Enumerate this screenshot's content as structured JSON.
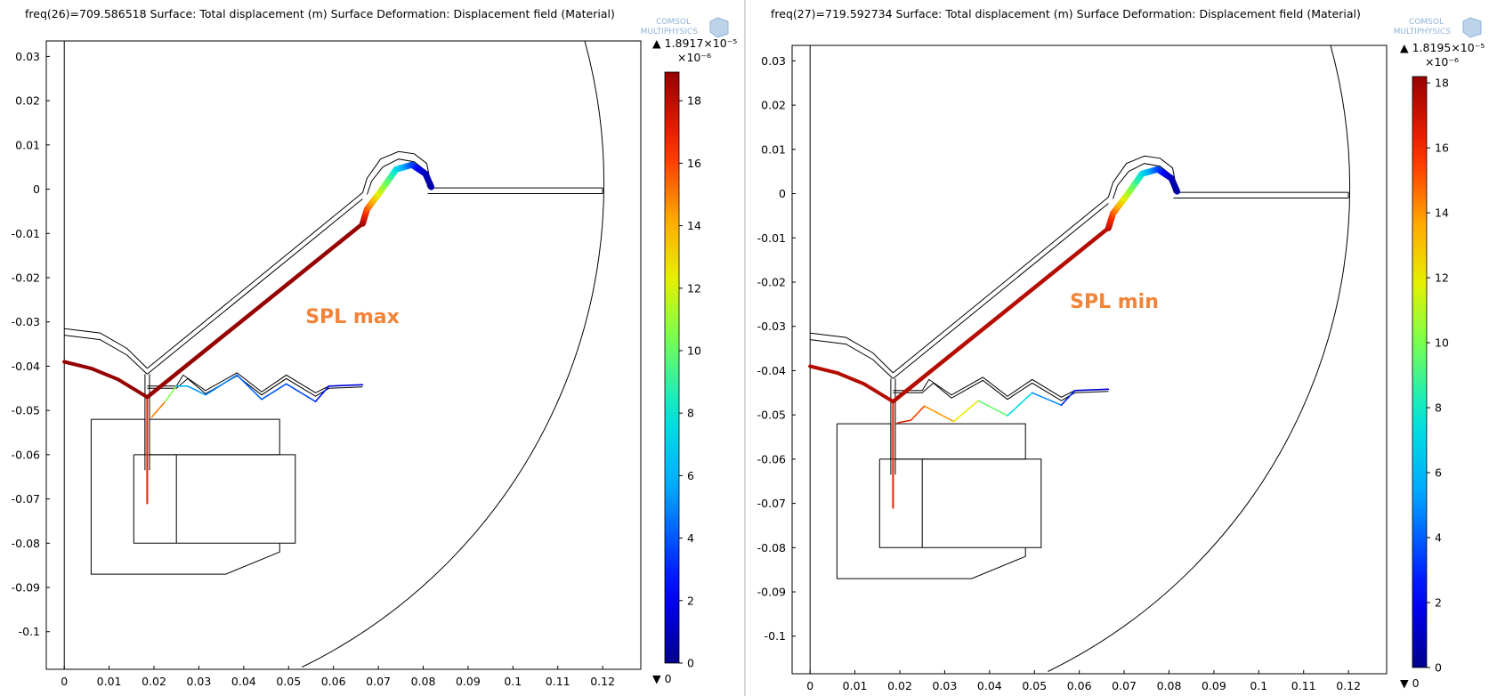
{
  "logo": {
    "line1": "COMSOL",
    "line2": "MULTIPHYSICS"
  },
  "chart_data": [
    {
      "type": "heatmap",
      "title": "freq(26)=709.586518  Surface: Total displacement (m)   Surface Deformation: Displacement field (Material)",
      "annotation": "SPL max",
      "x_ticks": [
        "0",
        "0.01",
        "0.02",
        "0.03",
        "0.04",
        "0.05",
        "0.06",
        "0.07",
        "0.08",
        "0.09",
        "0.1",
        "0.11",
        "0.12"
      ],
      "y_ticks": [
        "0.03",
        "0.02",
        "0.01",
        "0",
        "-0.01",
        "-0.02",
        "-0.03",
        "-0.04",
        "-0.05",
        "-0.06",
        "-0.07",
        "-0.08",
        "-0.09",
        "-0.1"
      ],
      "xlim": [
        -0.004,
        0.1285
      ],
      "ylim": [
        -0.1085,
        0.0335
      ],
      "colorbar": {
        "max_label": "▲ 1.8917×10⁻⁵",
        "min_label": "▼ 0",
        "multiplier": "×10⁻⁶",
        "ticks": [
          "0",
          "2",
          "4",
          "6",
          "8",
          "10",
          "12",
          "14",
          "16",
          "18"
        ],
        "min": 0,
        "max": 18.917,
        "colormap": "rainbow"
      },
      "cone": [
        [
          0.0185,
          -0.047
        ],
        [
          0.0665,
          -0.0078
        ]
      ],
      "dome": [
        [
          0.0665,
          -0.0078
        ],
        [
          0.0675,
          -0.0045
        ],
        [
          0.0705,
          -0.0005
        ],
        [
          0.074,
          0.0045
        ],
        [
          0.0775,
          0.0055
        ],
        [
          0.0805,
          0.0035
        ],
        [
          0.0818,
          0.0005
        ]
      ],
      "dome_values": [
        18.917,
        16,
        12,
        8,
        4,
        1,
        0.5
      ],
      "surround": [
        [
          0,
          -0.039
        ],
        [
          0.006,
          -0.0405
        ],
        [
          0.012,
          -0.043
        ],
        [
          0.0185,
          -0.047
        ]
      ],
      "suspension": [
        [
          0.0195,
          -0.0515
        ],
        [
          0.0225,
          -0.048
        ],
        [
          0.025,
          -0.0445
        ],
        [
          0.0275,
          -0.0445
        ],
        [
          0.0315,
          -0.0465
        ],
        [
          0.0385,
          -0.042
        ],
        [
          0.044,
          -0.0475
        ],
        [
          0.0495,
          -0.044
        ],
        [
          0.056,
          -0.048
        ],
        [
          0.059,
          -0.0445
        ],
        [
          0.0665,
          -0.0442
        ]
      ],
      "suspension_values": [
        16,
        14,
        7,
        5.5,
        5,
        4.5,
        4,
        4,
        3.5,
        2,
        1
      ],
      "voice_coil": [
        [
          0.0185,
          -0.0475
        ],
        [
          0.0185,
          -0.071
        ]
      ],
      "voice_coil_values": [
        18,
        16
      ]
    },
    {
      "type": "heatmap",
      "title": "freq(27)=719.592734  Surface: Total displacement (m)   Surface Deformation: Displacement field (Material)",
      "annotation": "SPL min",
      "x_ticks": [
        "0",
        "0.01",
        "0.02",
        "0.03",
        "0.04",
        "0.05",
        "0.06",
        "0.07",
        "0.08",
        "0.09",
        "0.1",
        "0.11",
        "0.12"
      ],
      "y_ticks": [
        "0.03",
        "0.02",
        "0.01",
        "0",
        "-0.01",
        "-0.02",
        "-0.03",
        "-0.04",
        "-0.05",
        "-0.06",
        "-0.07",
        "-0.08",
        "-0.09",
        "-0.1"
      ],
      "xlim": [
        -0.004,
        0.1285
      ],
      "ylim": [
        -0.1085,
        0.0335
      ],
      "colorbar": {
        "max_label": "▲ 1.8195×10⁻⁵",
        "min_label": "▼ 0",
        "multiplier": "×10⁻⁶",
        "ticks": [
          "0",
          "2",
          "4",
          "6",
          "8",
          "10",
          "12",
          "14",
          "16",
          "18"
        ],
        "min": 0,
        "max": 18.195,
        "colormap": "rainbow"
      },
      "cone": [
        [
          0.0185,
          -0.047
        ],
        [
          0.0665,
          -0.0078
        ]
      ],
      "dome": [
        [
          0.0665,
          -0.0078
        ],
        [
          0.0675,
          -0.0045
        ],
        [
          0.0705,
          -0.0005
        ],
        [
          0.074,
          0.0045
        ],
        [
          0.0775,
          0.0055
        ],
        [
          0.0805,
          0.0035
        ],
        [
          0.0818,
          0.0005
        ]
      ],
      "dome_values": [
        18.195,
        16,
        12,
        8,
        4,
        1,
        0.5
      ],
      "surround": [
        [
          0,
          -0.039
        ],
        [
          0.006,
          -0.0405
        ],
        [
          0.012,
          -0.043
        ],
        [
          0.0185,
          -0.047
        ]
      ],
      "suspension": [
        [
          0.0195,
          -0.0518
        ],
        [
          0.0225,
          -0.0512
        ],
        [
          0.0255,
          -0.048
        ],
        [
          0.032,
          -0.0515
        ],
        [
          0.0375,
          -0.0468
        ],
        [
          0.044,
          -0.0502
        ],
        [
          0.0495,
          -0.045
        ],
        [
          0.056,
          -0.0478
        ],
        [
          0.059,
          -0.0445
        ],
        [
          0.0665,
          -0.0442
        ]
      ],
      "suspension_values": [
        17.5,
        17,
        15,
        14,
        11,
        9,
        6,
        4,
        2,
        1
      ],
      "voice_coil": [
        [
          0.0185,
          -0.0475
        ],
        [
          0.0185,
          -0.071
        ]
      ],
      "voice_coil_values": [
        18,
        16
      ]
    }
  ]
}
